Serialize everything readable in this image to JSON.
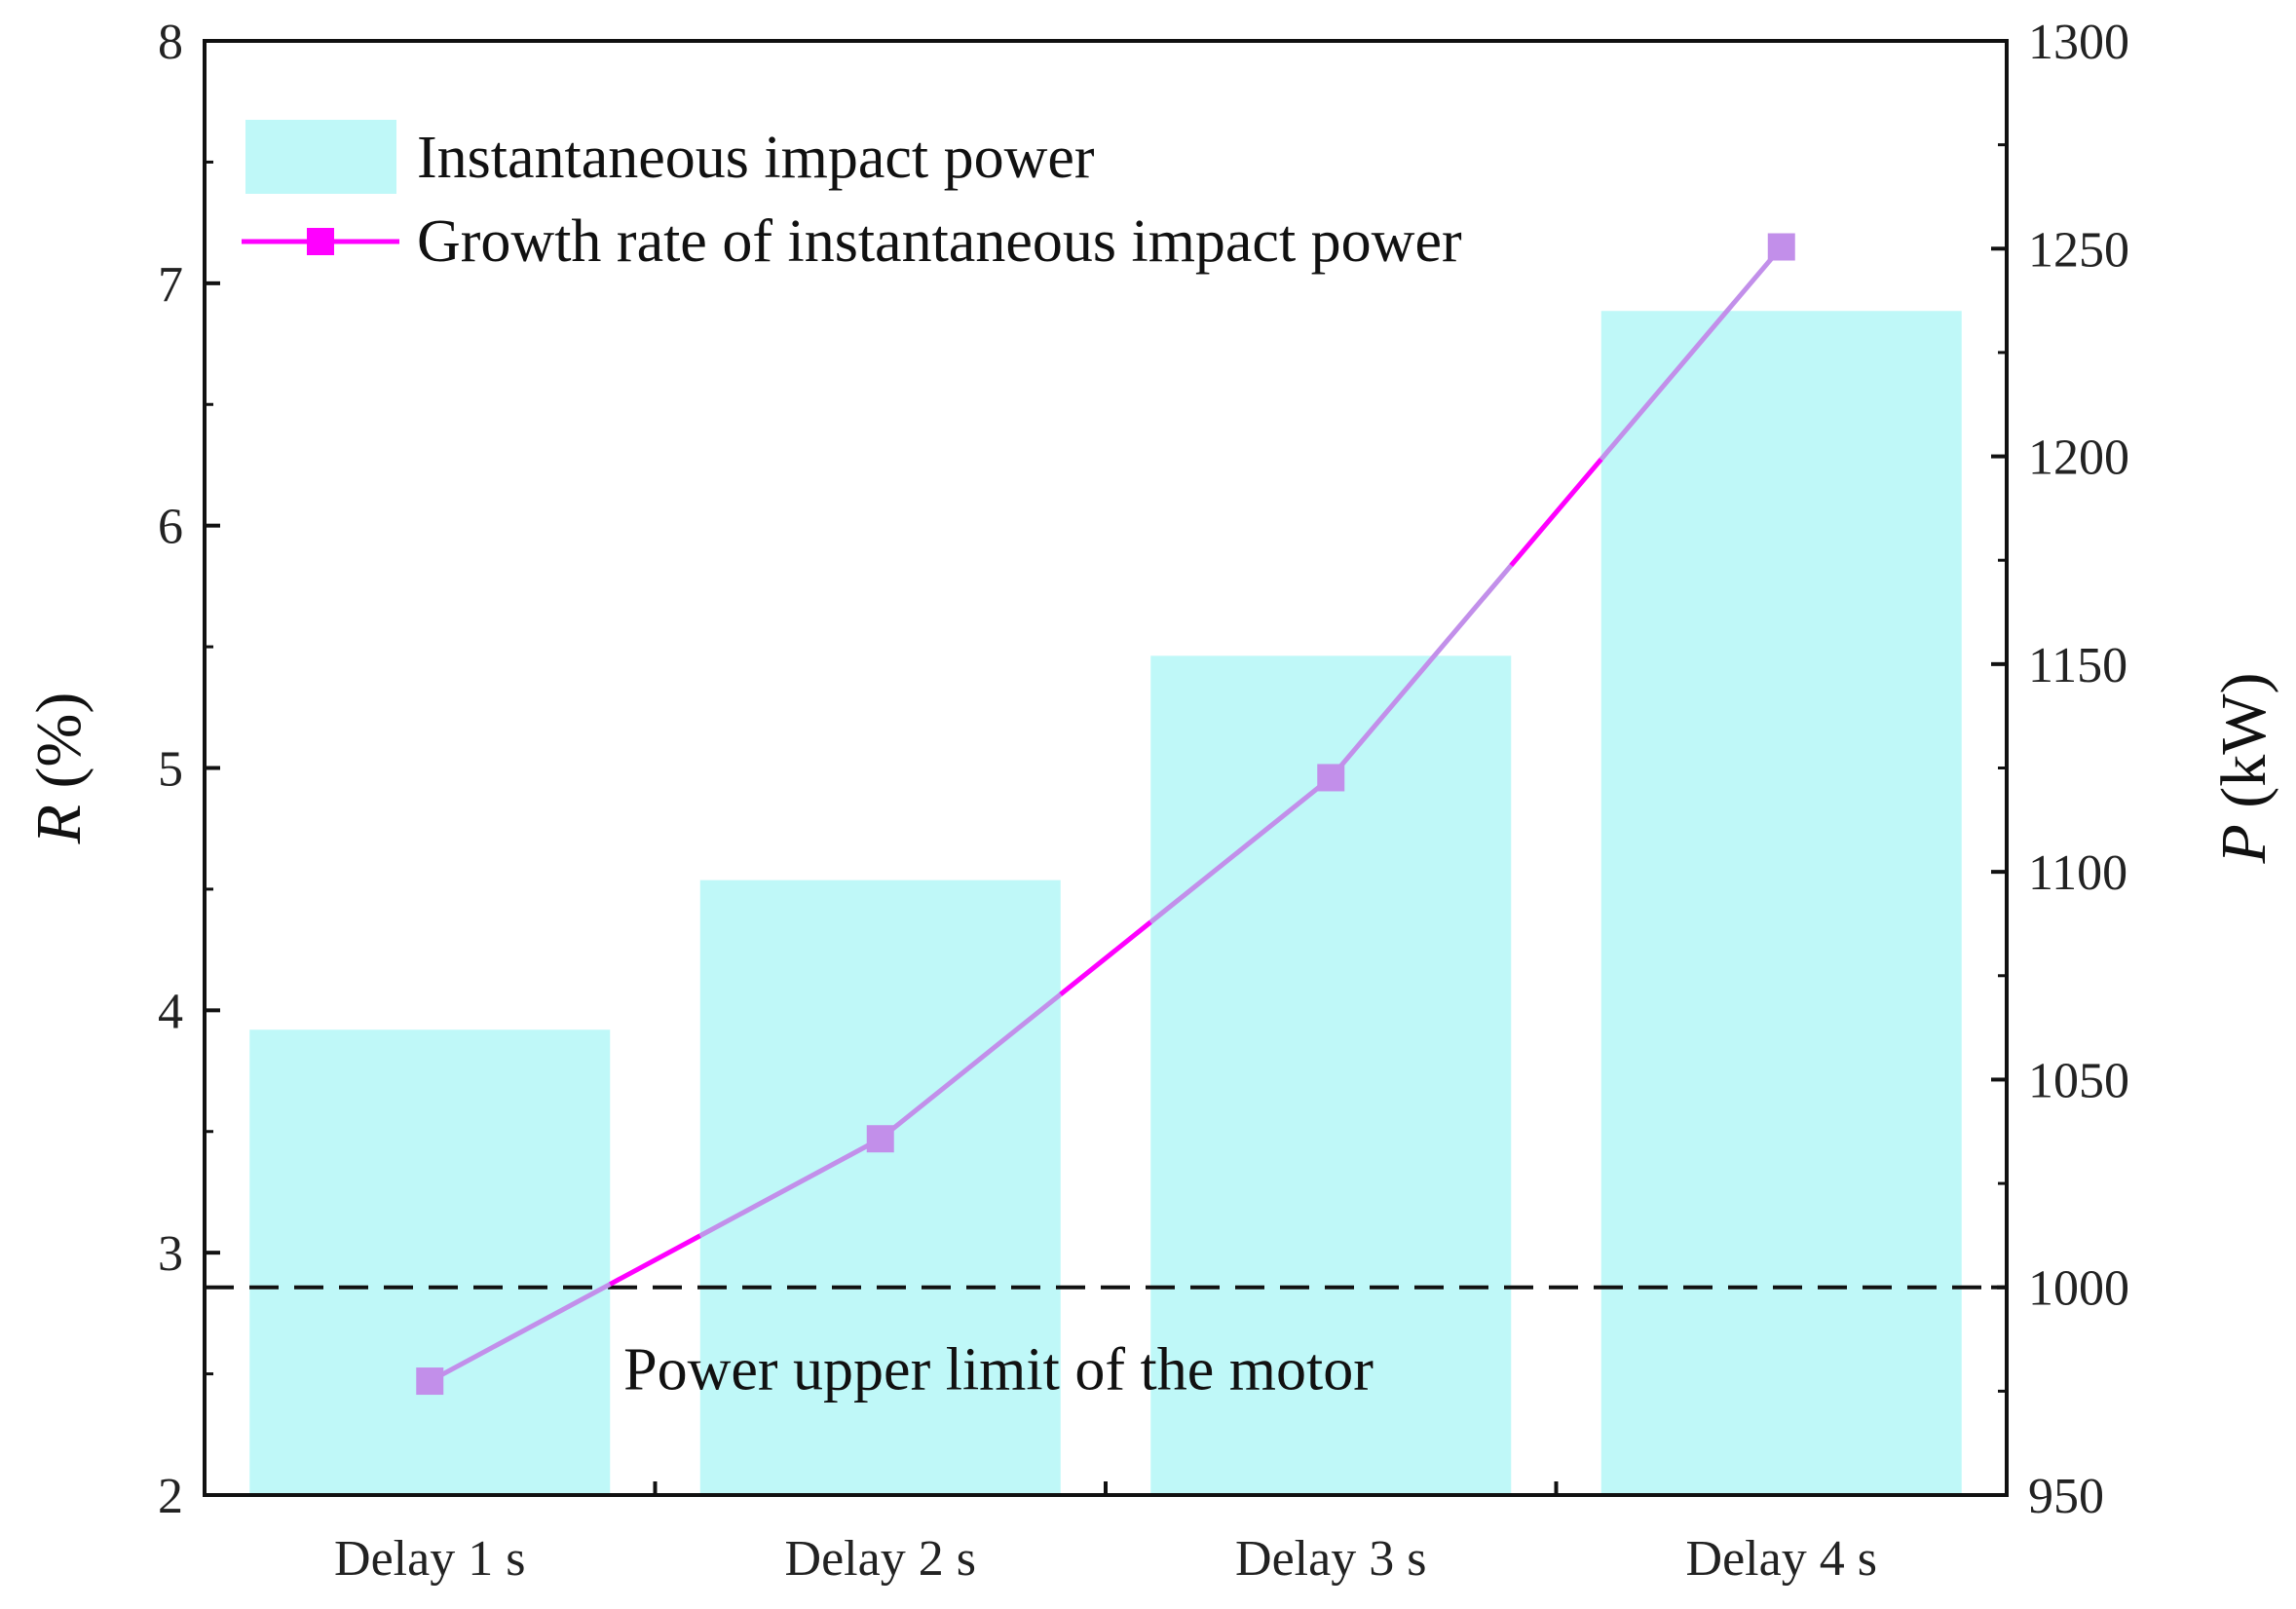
{
  "chart_data": {
    "type": "bar",
    "categories": [
      "Delay 1 s",
      "Delay 2 s",
      "Delay 3 s",
      "Delay 4 s"
    ],
    "series": [
      {
        "name": "Instantaneous impact power",
        "kind": "bar",
        "axis": "right",
        "values": [
          1062,
          1098,
          1152,
          1235
        ],
        "color": "#bff8f8"
      },
      {
        "name": "Growth rate of instantaneous impact power",
        "kind": "line",
        "axis": "left",
        "values": [
          2.47,
          3.47,
          4.96,
          7.15
        ],
        "color": "#ff00ff",
        "color_in_bar": "#c28fea"
      }
    ],
    "reference_line": {
      "label": "Power upper limit of the motor",
      "value": 1000,
      "axis": "right",
      "style": "dashed"
    },
    "left_axis": {
      "label_var": "R",
      "label_unit": " (%)",
      "range": [
        2,
        8
      ],
      "ticks": [
        "2",
        "3",
        "4",
        "5",
        "6",
        "7",
        "8"
      ]
    },
    "right_axis": {
      "label_var": "P",
      "label_unit": " (kW)",
      "range": [
        950,
        1300
      ],
      "ticks": [
        "950",
        "1000",
        "1050",
        "1100",
        "1150",
        "1200",
        "1250",
        "1300"
      ]
    },
    "grid": false,
    "legend_position": "top-left"
  }
}
